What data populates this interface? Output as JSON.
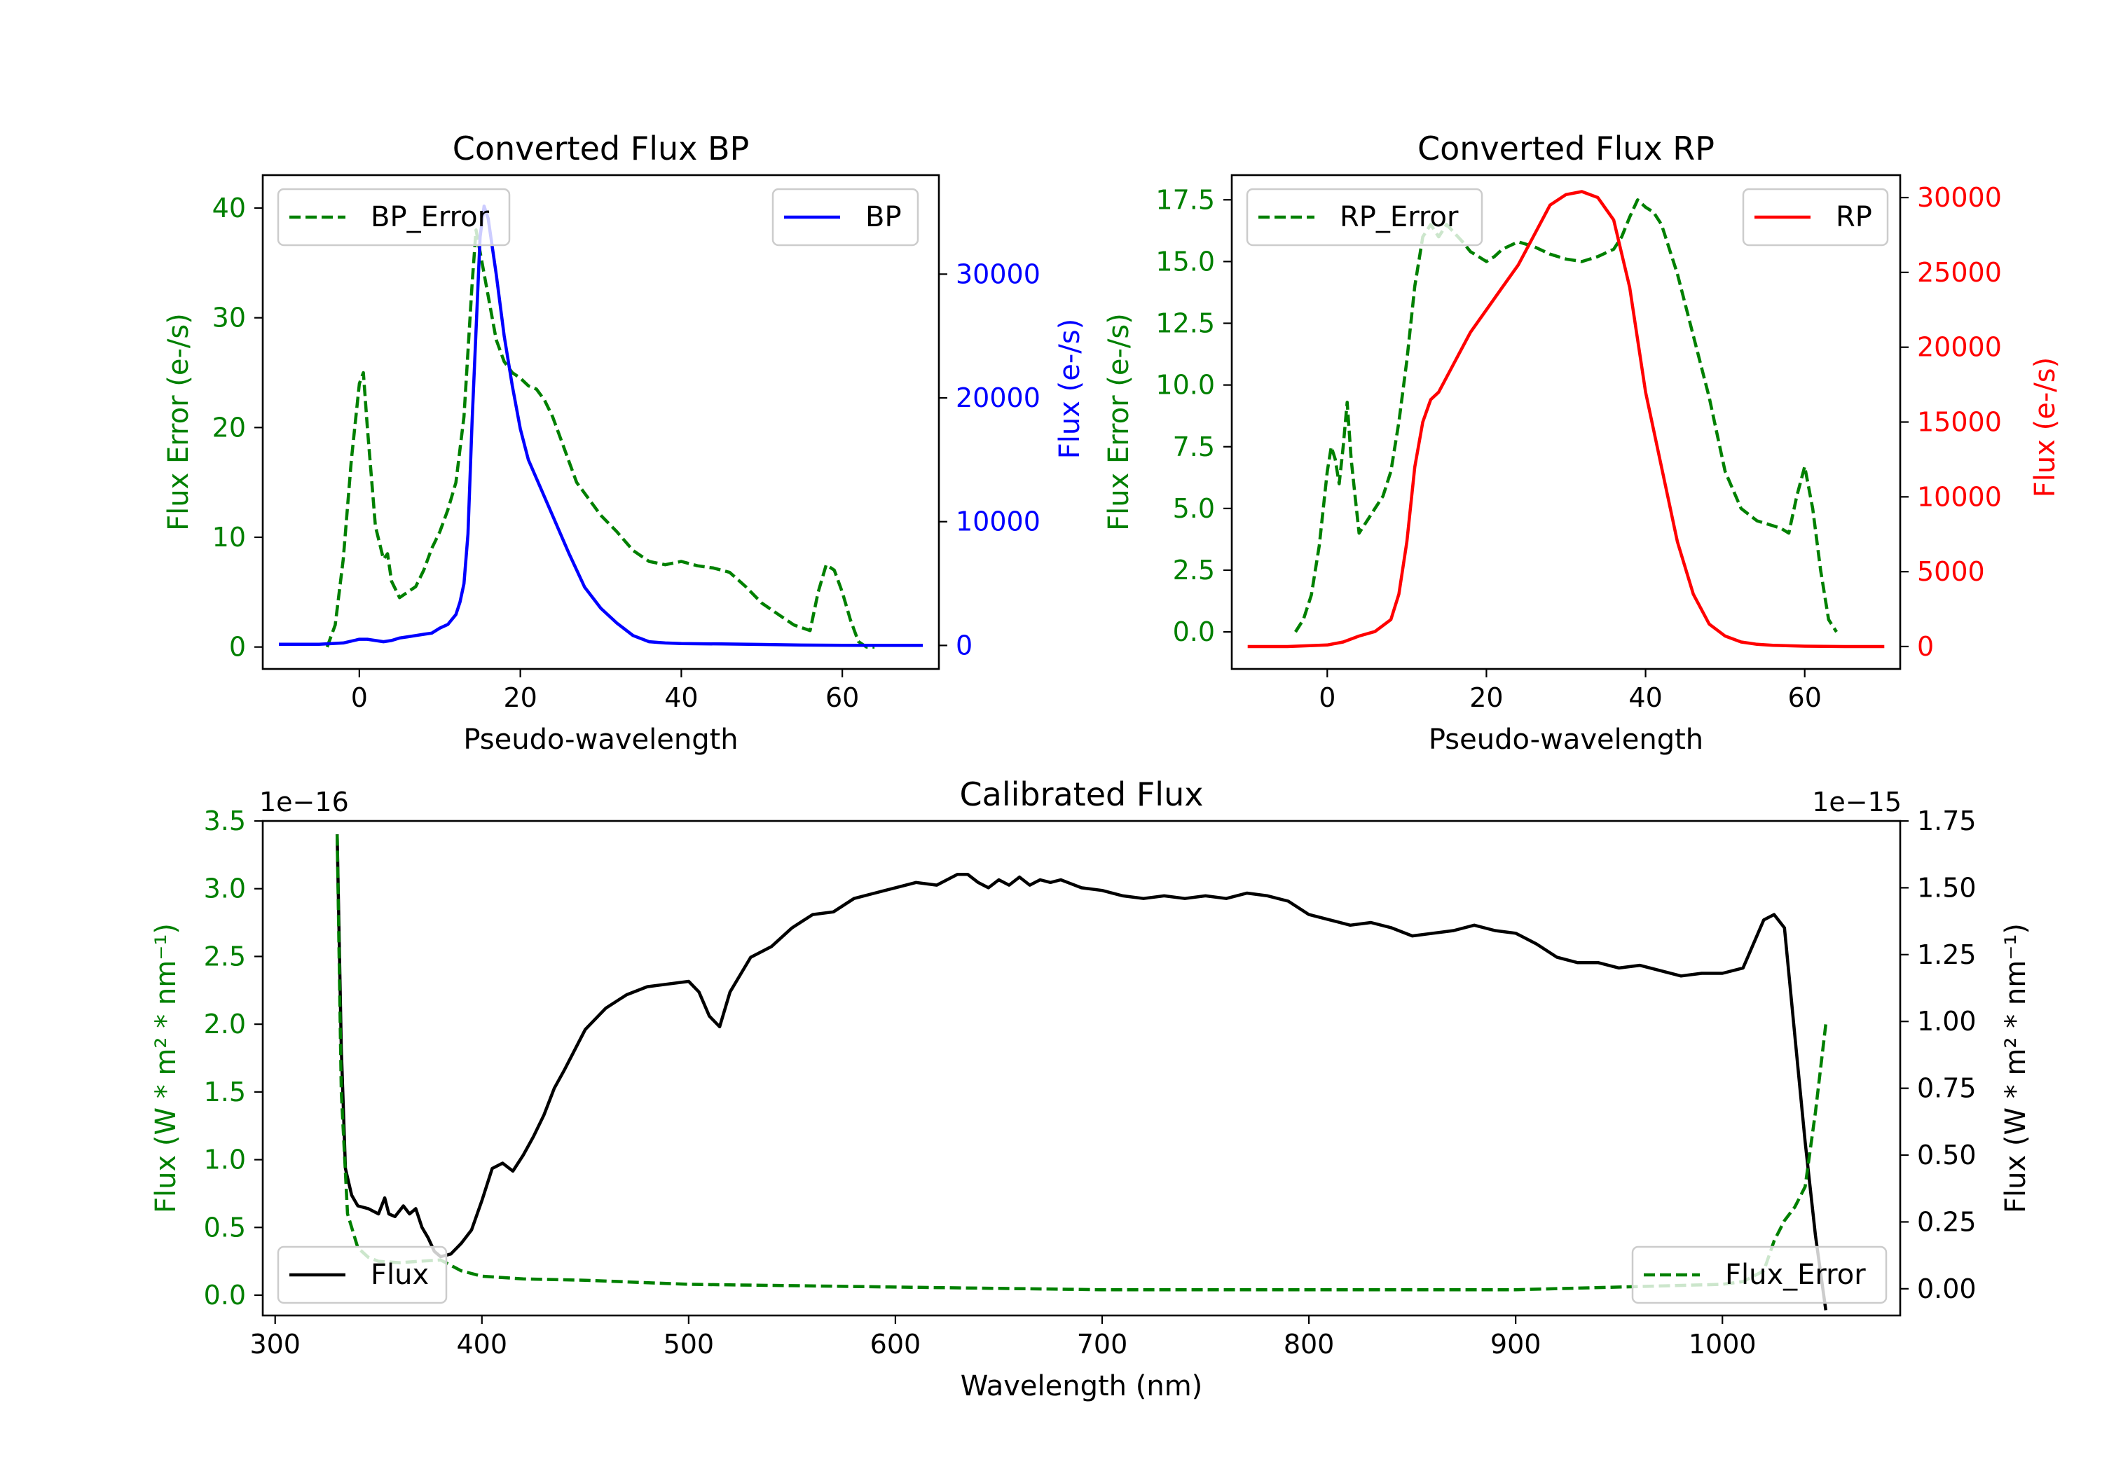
{
  "colors": {
    "green": "#008000",
    "blue": "#0000ff",
    "red": "#ff0000",
    "black": "#000000"
  },
  "chart_data": [
    {
      "id": "bp",
      "type": "line",
      "title": "Converted Flux BP",
      "xlabel": "Pseudo-wavelength",
      "ylabel_left": "Flux Error (e-/s)",
      "ylabel_right": "Flux (e-/s)",
      "xlim": [
        -12,
        72
      ],
      "ylim_left": [
        -2,
        43
      ],
      "ylim_right": [
        -1900,
        38000
      ],
      "xticks": [
        0,
        20,
        40,
        60
      ],
      "yticks_left": [
        0,
        10,
        20,
        30,
        40
      ],
      "yticks_right": [
        0,
        10000,
        20000,
        30000
      ],
      "legend_left": "BP_Error",
      "legend_right": "BP",
      "series": [
        {
          "name": "BP_Error",
          "axis": "left",
          "style": "dashed",
          "color": "#008000",
          "x": [
            -4,
            -3,
            -2,
            -1,
            0,
            0.5,
            1,
            2,
            3,
            3.5,
            4,
            5,
            6,
            7,
            8,
            9,
            10,
            11,
            12,
            13,
            14,
            14.5,
            15,
            16,
            17,
            18,
            19,
            20,
            21,
            22,
            23,
            24,
            25,
            26,
            27,
            28,
            30,
            32,
            34,
            36,
            38,
            40,
            42,
            44,
            46,
            48,
            50,
            52,
            54,
            56,
            57,
            58,
            59,
            60,
            61,
            62,
            63,
            64
          ],
          "y": [
            0,
            2,
            8,
            17,
            24,
            25,
            20,
            11,
            8,
            8.5,
            6,
            4.5,
            5,
            5.5,
            7,
            9,
            10.5,
            12.5,
            15,
            21,
            33,
            38,
            36,
            32,
            28,
            26,
            25,
            24.5,
            23.8,
            23.5,
            22.5,
            21,
            19,
            17,
            15,
            14,
            12,
            10.5,
            8.8,
            7.8,
            7.5,
            7.8,
            7.4,
            7.2,
            6.8,
            5.5,
            4,
            3,
            2,
            1.5,
            5,
            7.5,
            7,
            5,
            2.5,
            0.5,
            0,
            0
          ]
        },
        {
          "name": "BP",
          "axis": "right",
          "style": "solid",
          "color": "#0000ff",
          "x": [
            -10,
            -5,
            -2,
            0,
            1,
            2,
            3,
            4,
            5,
            6,
            7,
            8,
            9,
            10,
            11,
            12,
            12.5,
            13,
            13.5,
            14,
            15,
            15.5,
            16,
            17,
            18,
            19,
            20,
            21,
            22,
            23,
            24,
            26,
            28,
            30,
            32,
            34,
            36,
            38,
            40,
            45,
            50,
            55,
            60,
            65,
            70
          ],
          "y": [
            100,
            100,
            200,
            500,
            500,
            400,
            300,
            400,
            600,
            700,
            800,
            900,
            1000,
            1400,
            1700,
            2500,
            3500,
            5000,
            9000,
            18000,
            33000,
            35500,
            34500,
            30000,
            25000,
            21000,
            17500,
            15000,
            13500,
            12000,
            10500,
            7500,
            4700,
            3000,
            1800,
            800,
            300,
            200,
            150,
            120,
            80,
            30,
            10,
            0,
            0
          ]
        }
      ]
    },
    {
      "id": "rp",
      "type": "line",
      "title": "Converted Flux RP",
      "xlabel": "Pseudo-wavelength",
      "ylabel_left": "Flux Error (e-/s)",
      "ylabel_right": "Flux (e-/s)",
      "xlim": [
        -12,
        72
      ],
      "ylim_left": [
        -1.5,
        18.5
      ],
      "ylim_right": [
        -1500,
        31500
      ],
      "xticks": [
        0,
        20,
        40,
        60
      ],
      "yticks_left": [
        0.0,
        2.5,
        5.0,
        7.5,
        10.0,
        12.5,
        15.0,
        17.5
      ],
      "yticks_right": [
        0,
        5000,
        10000,
        15000,
        20000,
        25000,
        30000
      ],
      "legend_left": "RP_Error",
      "legend_right": "RP",
      "series": [
        {
          "name": "RP_Error",
          "axis": "left",
          "style": "dashed",
          "color": "#008000",
          "x": [
            -4,
            -3,
            -2,
            -1,
            0,
            0.5,
            1,
            1.5,
            2,
            2.5,
            3,
            3.5,
            4,
            5,
            6,
            7,
            8,
            9,
            10,
            11,
            12,
            13,
            14,
            15,
            17,
            18,
            19,
            20,
            21,
            22,
            24,
            26,
            28,
            30,
            32,
            34,
            36,
            37,
            38,
            39,
            40,
            41,
            42,
            44,
            46,
            48,
            50,
            52,
            54,
            56,
            57,
            58,
            59,
            60,
            61,
            62,
            63,
            64
          ],
          "y": [
            0,
            0.5,
            1.5,
            3.5,
            6.5,
            7.5,
            7,
            6,
            7.5,
            9.3,
            7,
            5.5,
            4,
            4.5,
            5,
            5.5,
            6.5,
            8.5,
            11,
            14,
            16,
            16.5,
            16,
            16.5,
            15.8,
            15.4,
            15.2,
            15,
            15.2,
            15.5,
            15.8,
            15.6,
            15.3,
            15.1,
            15.0,
            15.2,
            15.5,
            16,
            16.8,
            17.5,
            17.2,
            17,
            16.5,
            14.5,
            12,
            9.5,
            6.5,
            5,
            4.5,
            4.3,
            4.2,
            4.0,
            5.5,
            6.7,
            5,
            2.5,
            0.5,
            0
          ]
        },
        {
          "name": "RP",
          "axis": "right",
          "style": "solid",
          "color": "#ff0000",
          "x": [
            -10,
            -5,
            0,
            2,
            4,
            6,
            8,
            9,
            10,
            11,
            12,
            13,
            14,
            16,
            18,
            20,
            22,
            24,
            26,
            28,
            30,
            32,
            34,
            36,
            38,
            40,
            42,
            44,
            46,
            48,
            50,
            52,
            54,
            56,
            58,
            60,
            65,
            70
          ],
          "y": [
            0,
            0,
            100,
            300,
            700,
            1000,
            1800,
            3500,
            7000,
            12000,
            15000,
            16500,
            17000,
            19000,
            21000,
            22500,
            24000,
            25500,
            27500,
            29500,
            30200,
            30400,
            30000,
            28500,
            24000,
            17000,
            12000,
            7000,
            3500,
            1500,
            700,
            300,
            150,
            80,
            50,
            20,
            0,
            0
          ]
        }
      ]
    },
    {
      "id": "cal",
      "type": "line",
      "title": "Calibrated Flux",
      "xlabel": "Wavelength (nm)",
      "ylabel_left": "Flux (W * m² * nm⁻¹)",
      "ylabel_right": "Flux (W * m² * nm⁻¹)",
      "left_offset": "1e−16",
      "right_offset": "1e−15",
      "xlim": [
        294,
        1086
      ],
      "ylim_left": [
        -0.15,
        3.5
      ],
      "ylim_right": [
        -0.1,
        1.75
      ],
      "xticks": [
        300,
        400,
        500,
        600,
        700,
        800,
        900,
        1000
      ],
      "yticks_left": [
        0.0,
        0.5,
        1.0,
        1.5,
        2.0,
        2.5,
        3.0,
        3.5
      ],
      "yticks_right": [
        0.0,
        0.25,
        0.5,
        0.75,
        1.0,
        1.25,
        1.5,
        1.75
      ],
      "legend_left": "Flux",
      "legend_right": "Flux_Error",
      "series": [
        {
          "name": "Flux",
          "axis": "right",
          "style": "solid",
          "color": "#000000",
          "x": [
            330,
            332,
            334,
            337,
            340,
            345,
            350,
            353,
            355,
            358,
            362,
            365,
            368,
            371,
            374,
            377,
            380,
            385,
            390,
            395,
            400,
            405,
            410,
            415,
            420,
            425,
            430,
            435,
            440,
            450,
            460,
            470,
            480,
            490,
            500,
            505,
            510,
            515,
            520,
            530,
            540,
            550,
            560,
            570,
            580,
            590,
            600,
            610,
            620,
            630,
            635,
            640,
            645,
            650,
            655,
            660,
            665,
            670,
            675,
            680,
            690,
            700,
            710,
            720,
            730,
            740,
            750,
            760,
            770,
            780,
            790,
            800,
            810,
            820,
            830,
            840,
            850,
            860,
            870,
            880,
            890,
            900,
            910,
            920,
            930,
            940,
            950,
            960,
            970,
            980,
            990,
            1000,
            1010,
            1020,
            1025,
            1030,
            1035,
            1040,
            1045,
            1050
          ],
          "y": [
            1.7,
            0.9,
            0.45,
            0.35,
            0.31,
            0.3,
            0.28,
            0.34,
            0.28,
            0.27,
            0.31,
            0.28,
            0.3,
            0.23,
            0.19,
            0.14,
            0.12,
            0.13,
            0.17,
            0.22,
            0.33,
            0.45,
            0.47,
            0.44,
            0.5,
            0.57,
            0.65,
            0.75,
            0.82,
            0.97,
            1.05,
            1.1,
            1.13,
            1.14,
            1.15,
            1.11,
            1.02,
            0.98,
            1.11,
            1.24,
            1.28,
            1.35,
            1.4,
            1.41,
            1.46,
            1.48,
            1.5,
            1.52,
            1.51,
            1.55,
            1.55,
            1.52,
            1.5,
            1.53,
            1.51,
            1.54,
            1.51,
            1.53,
            1.52,
            1.53,
            1.5,
            1.49,
            1.47,
            1.46,
            1.47,
            1.46,
            1.47,
            1.46,
            1.48,
            1.47,
            1.45,
            1.4,
            1.38,
            1.36,
            1.37,
            1.35,
            1.32,
            1.33,
            1.34,
            1.36,
            1.34,
            1.33,
            1.29,
            1.24,
            1.22,
            1.22,
            1.2,
            1.21,
            1.19,
            1.17,
            1.18,
            1.18,
            1.2,
            1.38,
            1.4,
            1.35,
            0.95,
            0.55,
            0.2,
            -0.08
          ]
        },
        {
          "name": "Flux_Error",
          "axis": "left",
          "style": "dashed",
          "color": "#008000",
          "x": [
            330,
            332,
            335,
            340,
            345,
            350,
            360,
            370,
            380,
            390,
            400,
            420,
            450,
            500,
            550,
            600,
            650,
            700,
            750,
            800,
            850,
            900,
            950,
            1000,
            1010,
            1020,
            1025,
            1030,
            1035,
            1040,
            1045,
            1050
          ],
          "y": [
            3.4,
            1.5,
            0.6,
            0.35,
            0.28,
            0.25,
            0.24,
            0.25,
            0.26,
            0.18,
            0.14,
            0.12,
            0.11,
            0.08,
            0.07,
            0.06,
            0.05,
            0.04,
            0.04,
            0.04,
            0.04,
            0.04,
            0.06,
            0.08,
            0.1,
            0.18,
            0.4,
            0.55,
            0.65,
            0.8,
            1.35,
            2.0
          ]
        }
      ]
    }
  ]
}
